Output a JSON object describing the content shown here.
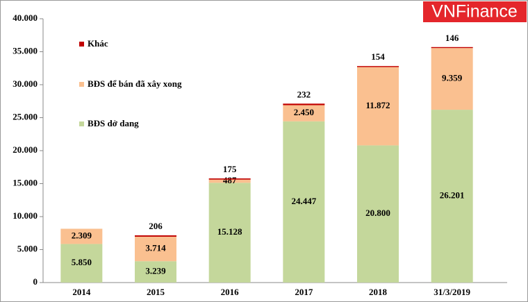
{
  "chart_data": {
    "type": "stacked-bar",
    "watermark": "VNFinance",
    "categories": [
      "2014",
      "2015",
      "2016",
      "2017",
      "2018",
      "31/3/2019"
    ],
    "series": [
      {
        "name": "BĐS dở dang",
        "color": "#c4d79b",
        "values": [
          5850,
          3239,
          15128,
          24447,
          20800,
          26201
        ],
        "value_labels": [
          "5.850",
          "3.239",
          "15.128",
          "24.447",
          "20.800",
          "26.201"
        ]
      },
      {
        "name": "BĐS để bán đã xây xong",
        "color": "#fac090",
        "values": [
          2309,
          3714,
          487,
          2450,
          11872,
          9359
        ],
        "value_labels": [
          "2.309",
          "3.714",
          "487",
          "2.450",
          "11.872",
          "9.359"
        ]
      },
      {
        "name": "Khác",
        "color": "#c00000",
        "values": [
          null,
          206,
          175,
          232,
          154,
          146
        ]
      }
    ],
    "ylim": [
      0,
      40000
    ],
    "yticks": [
      0,
      {
        "value": 5000,
        "label": "5.000"
      },
      {
        "value": 10000,
        "label": "10.000"
      },
      {
        "value": 15000,
        "label": "15.000"
      },
      {
        "value": 20000,
        "label": "20.000"
      },
      {
        "value": 25000,
        "label": "25.000"
      },
      {
        "value": 30000,
        "label": "30.000"
      },
      {
        "value": 35000,
        "label": "35.000"
      },
      {
        "value": 40000,
        "label": "40.000"
      }
    ],
    "grid": false,
    "legend": "upper-left"
  }
}
